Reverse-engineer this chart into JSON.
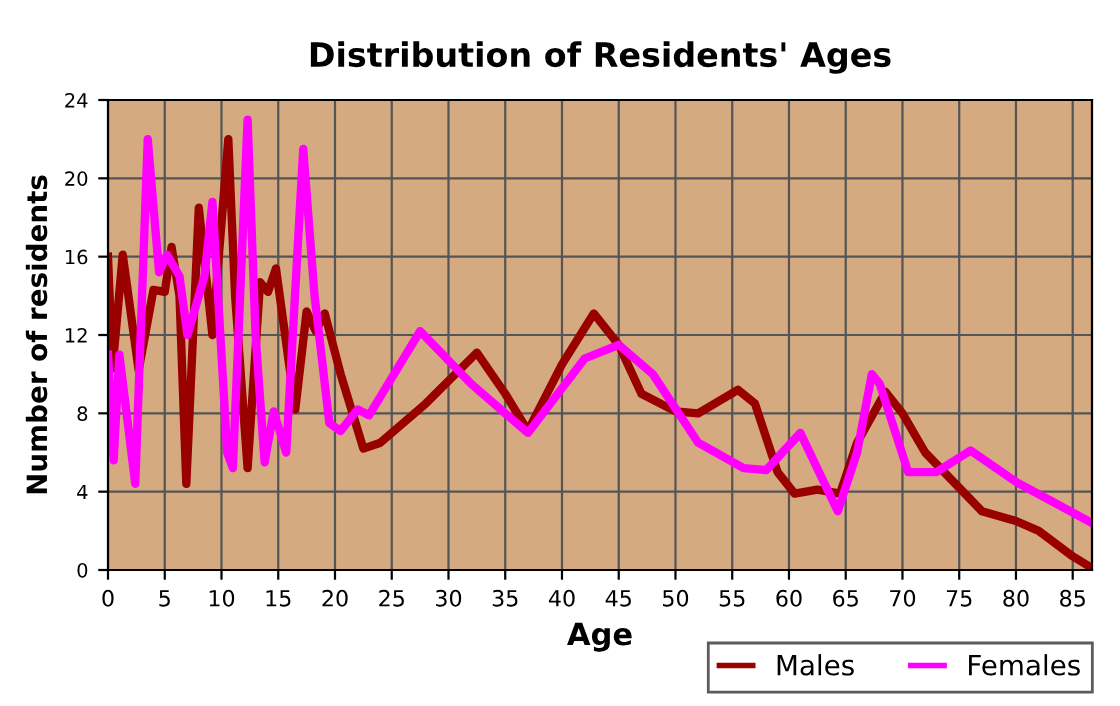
{
  "chart_data": {
    "type": "line",
    "title": "Distribution of Residents' Ages",
    "xlabel": "Age",
    "ylabel": "Number of residents",
    "xlim": [
      0,
      86.7
    ],
    "xticks": [
      0,
      5,
      10,
      15,
      20,
      25,
      30,
      35,
      40,
      45,
      50,
      55,
      60,
      65,
      70,
      75,
      80,
      85
    ],
    "ylim": [
      0,
      24
    ],
    "yticks": [
      0,
      4,
      8,
      12,
      16,
      20,
      24
    ],
    "grid": true,
    "legend": "bottom right",
    "marker": "none",
    "line_style": "solid",
    "series": [
      {
        "name": "Males",
        "color": "#990000",
        "x": [
          0,
          0.4,
          1.3,
          2.7,
          4,
          5,
          5.6,
          6.3,
          6.9,
          8,
          9.2,
          10.6,
          11.2,
          12.3,
          13.4,
          14.1,
          14.8,
          16.5,
          17.5,
          18.3,
          19.1,
          20.5,
          22.5,
          24,
          28,
          32.5,
          35,
          37,
          40,
          42.8,
          45,
          47,
          50,
          52,
          55.5,
          57,
          59,
          60.5,
          62.5,
          64.5,
          66,
          68.5,
          70,
          72,
          75,
          77,
          80,
          82,
          85,
          86.7
        ],
        "values": [
          16,
          10.3,
          16.1,
          10.2,
          14.3,
          14.2,
          16.5,
          14,
          4.4,
          18.5,
          12,
          22,
          14,
          5.2,
          14.7,
          14.2,
          15.4,
          8.2,
          13.2,
          12.2,
          13.1,
          10,
          6.2,
          6.5,
          8.5,
          11.1,
          9,
          7.1,
          10.5,
          13.1,
          11.5,
          9,
          8.1,
          8,
          9.2,
          8.5,
          5,
          3.9,
          4.1,
          3.9,
          6.5,
          9.1,
          8,
          6,
          4.2,
          3,
          2.5,
          2,
          0.7,
          0.1
        ]
      },
      {
        "name": "Females",
        "color": "#ff00ff",
        "x": [
          0,
          0.5,
          1,
          2.4,
          3.5,
          4.5,
          5.2,
          6.3,
          7,
          8.5,
          9.2,
          9.9,
          10.5,
          11,
          12.3,
          13,
          13.8,
          14.6,
          15.7,
          17.2,
          18.2,
          19.5,
          20.5,
          22,
          23,
          27.5,
          32,
          37,
          42,
          45,
          48,
          52,
          56,
          58,
          61,
          64.3,
          66,
          67.3,
          68,
          70.5,
          73,
          76,
          80,
          86.7
        ],
        "values": [
          11,
          5.6,
          11,
          4.4,
          22,
          15.2,
          16.1,
          15,
          12,
          15,
          18.8,
          12,
          6,
          5.2,
          23,
          12,
          5.5,
          8.1,
          6,
          21.5,
          14,
          7.5,
          7.1,
          8.2,
          7.9,
          12.2,
          9.5,
          7,
          10.8,
          11.5,
          10,
          6.5,
          5.2,
          5.1,
          7,
          3,
          6,
          10,
          9.5,
          5,
          5,
          6.1,
          4.5,
          2.4
        ]
      }
    ]
  }
}
